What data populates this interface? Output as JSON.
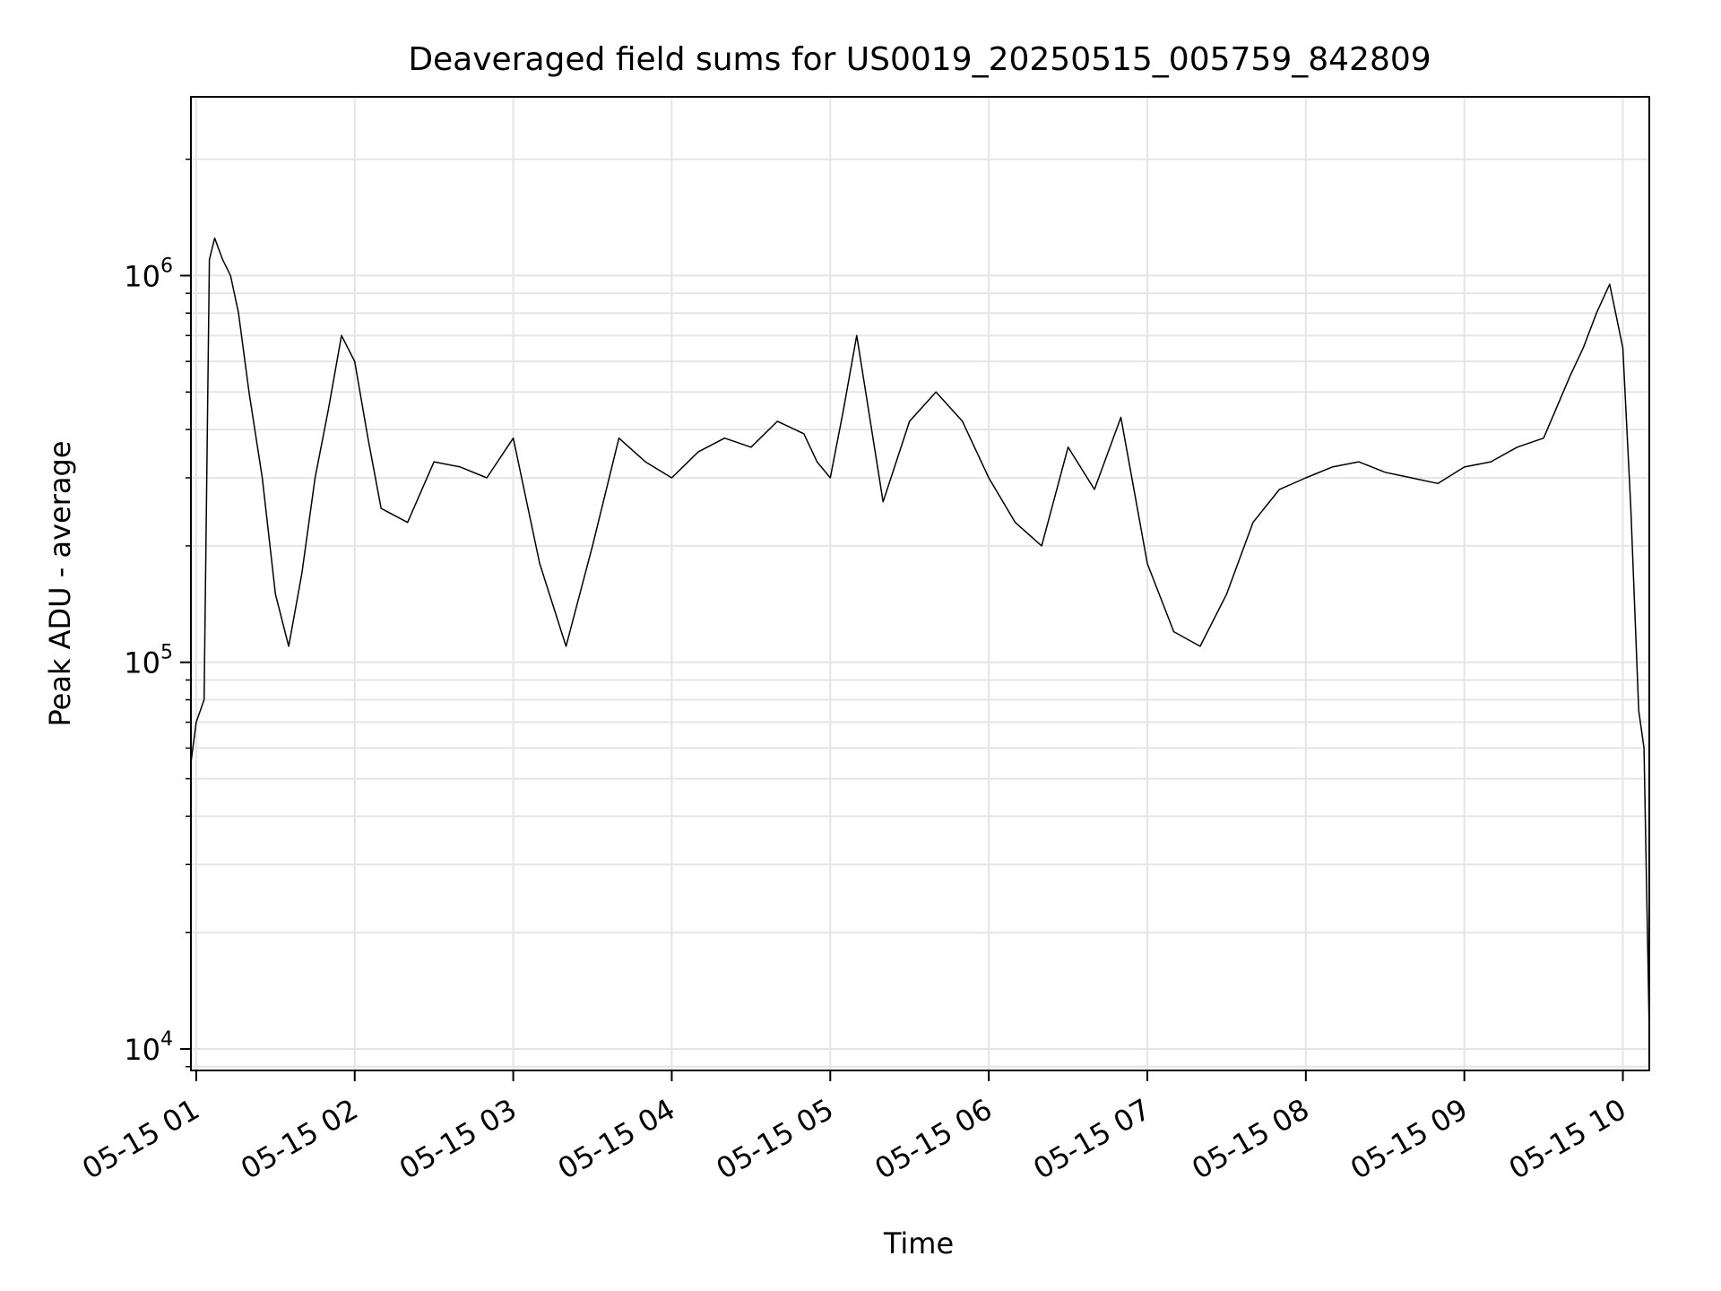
{
  "chart_data": {
    "type": "line",
    "title": "Deaveraged field sums for US0019_20250515_005759_842809",
    "xlabel": "Time",
    "ylabel": "Peak ADU - average",
    "yscale": "log",
    "ylim": [
      8800,
      2900000
    ],
    "xlim": [
      "2025-05-15 00:58",
      "2025-05-15 10:10"
    ],
    "grid": true,
    "line_color": "#000000",
    "grid_color": "#e5e5e5",
    "x_ticks": [
      {
        "value": "2025-05-15 01:00",
        "label": "05-15 01"
      },
      {
        "value": "2025-05-15 02:00",
        "label": "05-15 02"
      },
      {
        "value": "2025-05-15 03:00",
        "label": "05-15 03"
      },
      {
        "value": "2025-05-15 04:00",
        "label": "05-15 04"
      },
      {
        "value": "2025-05-15 05:00",
        "label": "05-15 05"
      },
      {
        "value": "2025-05-15 06:00",
        "label": "05-15 06"
      },
      {
        "value": "2025-05-15 07:00",
        "label": "05-15 07"
      },
      {
        "value": "2025-05-15 08:00",
        "label": "05-15 08"
      },
      {
        "value": "2025-05-15 09:00",
        "label": "05-15 09"
      },
      {
        "value": "2025-05-15 10:00",
        "label": "05-15 10"
      }
    ],
    "y_ticks": [
      {
        "value": 10000,
        "base": "10",
        "exp": "4"
      },
      {
        "value": 100000,
        "base": "10",
        "exp": "5"
      },
      {
        "value": 1000000,
        "base": "10",
        "exp": "6"
      }
    ],
    "series": [
      {
        "x": [
          "2025-05-15 00:58",
          "2025-05-15 01:00",
          "2025-05-15 01:03",
          "2025-05-15 01:05",
          "2025-05-15 01:07",
          "2025-05-15 01:10",
          "2025-05-15 01:13",
          "2025-05-15 01:16",
          "2025-05-15 01:20",
          "2025-05-15 01:25",
          "2025-05-15 01:30",
          "2025-05-15 01:35",
          "2025-05-15 01:40",
          "2025-05-15 01:45",
          "2025-05-15 01:50",
          "2025-05-15 01:55",
          "2025-05-15 02:00",
          "2025-05-15 02:05",
          "2025-05-15 02:10",
          "2025-05-15 02:20",
          "2025-05-15 02:30",
          "2025-05-15 02:40",
          "2025-05-15 02:50",
          "2025-05-15 03:00",
          "2025-05-15 03:10",
          "2025-05-15 03:20",
          "2025-05-15 03:30",
          "2025-05-15 03:40",
          "2025-05-15 03:50",
          "2025-05-15 04:00",
          "2025-05-15 04:10",
          "2025-05-15 04:20",
          "2025-05-15 04:30",
          "2025-05-15 04:40",
          "2025-05-15 04:50",
          "2025-05-15 04:55",
          "2025-05-15 05:00",
          "2025-05-15 05:05",
          "2025-05-15 05:10",
          "2025-05-15 05:20",
          "2025-05-15 05:30",
          "2025-05-15 05:40",
          "2025-05-15 05:50",
          "2025-05-15 06:00",
          "2025-05-15 06:10",
          "2025-05-15 06:20",
          "2025-05-15 06:30",
          "2025-05-15 06:40",
          "2025-05-15 06:50",
          "2025-05-15 07:00",
          "2025-05-15 07:10",
          "2025-05-15 07:20",
          "2025-05-15 07:30",
          "2025-05-15 07:40",
          "2025-05-15 07:50",
          "2025-05-15 08:00",
          "2025-05-15 08:10",
          "2025-05-15 08:20",
          "2025-05-15 08:30",
          "2025-05-15 08:40",
          "2025-05-15 08:50",
          "2025-05-15 09:00",
          "2025-05-15 09:10",
          "2025-05-15 09:20",
          "2025-05-15 09:30",
          "2025-05-15 09:40",
          "2025-05-15 09:45",
          "2025-05-15 09:50",
          "2025-05-15 09:55",
          "2025-05-15 10:00",
          "2025-05-15 10:03",
          "2025-05-15 10:06",
          "2025-05-15 10:08",
          "2025-05-15 10:10"
        ],
        "y": [
          55000,
          70000,
          80000,
          1100000,
          1250000,
          1100000,
          1000000,
          800000,
          500000,
          300000,
          150000,
          110000,
          170000,
          300000,
          450000,
          700000,
          600000,
          380000,
          250000,
          230000,
          330000,
          320000,
          300000,
          380000,
          180000,
          110000,
          200000,
          380000,
          330000,
          300000,
          350000,
          380000,
          360000,
          420000,
          390000,
          330000,
          300000,
          450000,
          700000,
          260000,
          420000,
          500000,
          420000,
          300000,
          230000,
          200000,
          360000,
          280000,
          430000,
          180000,
          120000,
          110000,
          150000,
          230000,
          280000,
          300000,
          320000,
          330000,
          310000,
          300000,
          290000,
          320000,
          330000,
          360000,
          380000,
          550000,
          650000,
          800000,
          950000,
          650000,
          250000,
          75000,
          60000,
          11000
        ]
      }
    ]
  }
}
